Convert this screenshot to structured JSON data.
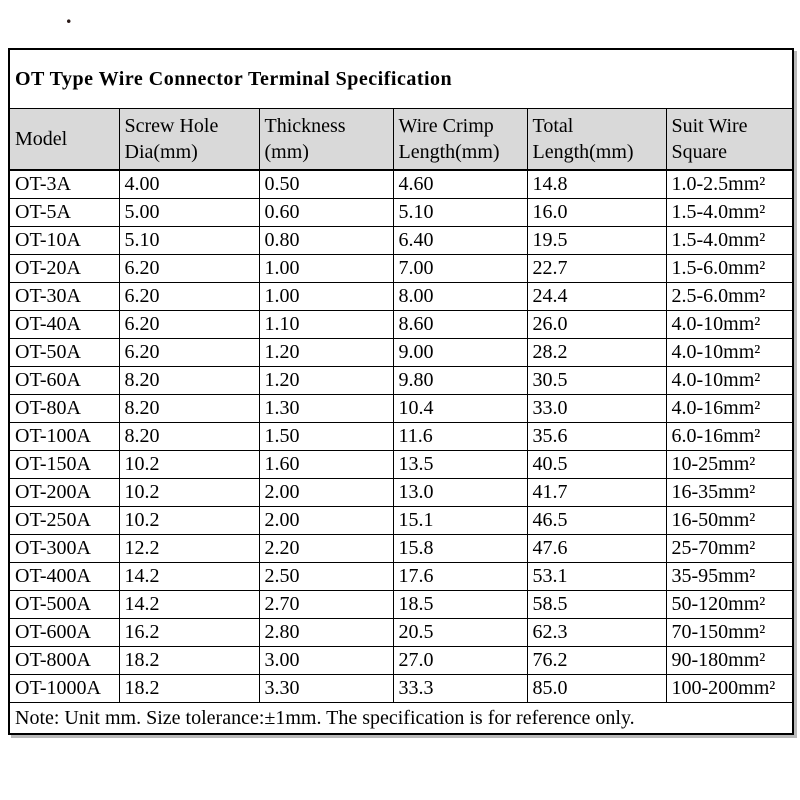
{
  "page": {
    "stray_mark": "."
  },
  "table": {
    "title": "OT Type Wire Connector Terminal Specification",
    "columns": [
      {
        "line1": "Model",
        "line2": ""
      },
      {
        "line1": "Screw Hole",
        "line2": "Dia(mm)"
      },
      {
        "line1": "Thickness",
        "line2": "(mm)"
      },
      {
        "line1": "Wire Crimp",
        "line2": "Length(mm)"
      },
      {
        "line1": "Total",
        "line2": "Length(mm)"
      },
      {
        "line1": "Suit Wire",
        "line2": "Square"
      }
    ],
    "rows": [
      [
        "OT-3A",
        "4.00",
        "0.50",
        "4.60",
        "14.8",
        "1.0-2.5mm²"
      ],
      [
        "OT-5A",
        "5.00",
        "0.60",
        "5.10",
        "16.0",
        "1.5-4.0mm²"
      ],
      [
        "OT-10A",
        "5.10",
        "0.80",
        "6.40",
        "19.5",
        "1.5-4.0mm²"
      ],
      [
        "OT-20A",
        "6.20",
        "1.00",
        "7.00",
        "22.7",
        "1.5-6.0mm²"
      ],
      [
        "OT-30A",
        "6.20",
        "1.00",
        "8.00",
        "24.4",
        "2.5-6.0mm²"
      ],
      [
        "OT-40A",
        "6.20",
        "1.10",
        "8.60",
        "26.0",
        "4.0-10mm²"
      ],
      [
        "OT-50A",
        "6.20",
        "1.20",
        "9.00",
        "28.2",
        "4.0-10mm²"
      ],
      [
        "OT-60A",
        "8.20",
        "1.20",
        "9.80",
        "30.5",
        "4.0-10mm²"
      ],
      [
        "OT-80A",
        "8.20",
        "1.30",
        "10.4",
        "33.0",
        "4.0-16mm²"
      ],
      [
        "OT-100A",
        "8.20",
        "1.50",
        "11.6",
        "35.6",
        "6.0-16mm²"
      ],
      [
        "OT-150A",
        "10.2",
        "1.60",
        "13.5",
        "40.5",
        "10-25mm²"
      ],
      [
        "OT-200A",
        "10.2",
        "2.00",
        "13.0",
        "41.7",
        "16-35mm²"
      ],
      [
        "OT-250A",
        "10.2",
        "2.00",
        "15.1",
        "46.5",
        "16-50mm²"
      ],
      [
        "OT-300A",
        "12.2",
        "2.20",
        "15.8",
        "47.6",
        "25-70mm²"
      ],
      [
        "OT-400A",
        "14.2",
        "2.50",
        "17.6",
        "53.1",
        "35-95mm²"
      ],
      [
        "OT-500A",
        "14.2",
        "2.70",
        "18.5",
        "58.5",
        "50-120mm²"
      ],
      [
        "OT-600A",
        "16.2",
        "2.80",
        "20.5",
        "62.3",
        "70-150mm²"
      ],
      [
        "OT-800A",
        "18.2",
        "3.00",
        "27.0",
        "76.2",
        "90-180mm²"
      ],
      [
        "OT-1000A",
        "18.2",
        "3.30",
        "33.3",
        "85.0",
        "100-200mm²"
      ]
    ],
    "note": "Note: Unit mm. Size tolerance:±1mm. The specification is for reference only.",
    "colors": {
      "header_bg": "#d9d9d9",
      "border": "#000000",
      "text": "#000000",
      "background": "#ffffff"
    }
  }
}
